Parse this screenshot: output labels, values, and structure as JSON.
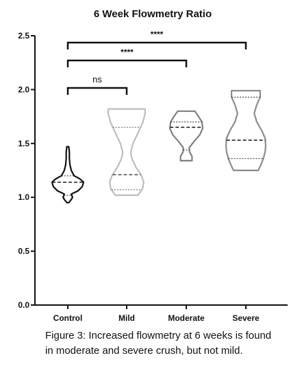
{
  "chart_data": {
    "type": "violin",
    "title": "6 Week Flowmetry Ratio",
    "xlabel": "",
    "ylabel": "",
    "ylim": [
      0,
      2.5
    ],
    "yticks": [
      0.0,
      0.5,
      1.0,
      1.5,
      2.0,
      2.5
    ],
    "ytick_labels": [
      "0.0",
      "0.5",
      "1.0",
      "1.5",
      "2.0",
      "2.5"
    ],
    "categories": [
      "Control",
      "Mild",
      "Moderate",
      "Severe"
    ],
    "series": [
      {
        "category": "Control",
        "color": "#111111",
        "min": 0.95,
        "max": 1.47,
        "median": 1.14,
        "q1": 1.02,
        "q3": 1.2,
        "profile": [
          [
            0.95,
            0.06
          ],
          [
            0.98,
            0.22
          ],
          [
            1.0,
            0.3
          ],
          [
            1.03,
            0.22
          ],
          [
            1.06,
            0.65
          ],
          [
            1.1,
            0.92
          ],
          [
            1.14,
            1.0
          ],
          [
            1.17,
            0.78
          ],
          [
            1.2,
            0.4
          ],
          [
            1.25,
            0.22
          ],
          [
            1.3,
            0.14
          ],
          [
            1.36,
            0.1
          ],
          [
            1.42,
            0.1
          ],
          [
            1.47,
            0.06
          ]
        ]
      },
      {
        "category": "Mild",
        "color": "#bdbdbd",
        "min": 1.02,
        "max": 1.82,
        "median": 1.21,
        "q1": 1.07,
        "q3": 1.65,
        "profile": [
          [
            1.02,
            0.62
          ],
          [
            1.08,
            0.86
          ],
          [
            1.14,
            0.92
          ],
          [
            1.2,
            0.8
          ],
          [
            1.28,
            0.5
          ],
          [
            1.36,
            0.28
          ],
          [
            1.42,
            0.22
          ],
          [
            1.5,
            0.34
          ],
          [
            1.6,
            0.62
          ],
          [
            1.7,
            0.88
          ],
          [
            1.78,
            1.0
          ],
          [
            1.82,
            1.0
          ]
        ]
      },
      {
        "category": "Moderate",
        "color": "#7f7f7f",
        "min": 1.34,
        "max": 1.8,
        "median": 1.65,
        "q1": 1.44,
        "q3": 1.7,
        "profile": [
          [
            1.34,
            0.35
          ],
          [
            1.38,
            0.35
          ],
          [
            1.42,
            0.2
          ],
          [
            1.46,
            0.18
          ],
          [
            1.52,
            0.48
          ],
          [
            1.58,
            0.82
          ],
          [
            1.64,
            1.0
          ],
          [
            1.7,
            0.95
          ],
          [
            1.75,
            0.75
          ],
          [
            1.8,
            0.52
          ]
        ]
      },
      {
        "category": "Severe",
        "color": "#8c8c8c",
        "min": 1.25,
        "max": 1.99,
        "median": 1.53,
        "q1": 1.36,
        "q3": 1.93,
        "profile": [
          [
            1.25,
            0.62
          ],
          [
            1.3,
            0.75
          ],
          [
            1.36,
            0.88
          ],
          [
            1.42,
            0.97
          ],
          [
            1.48,
            1.0
          ],
          [
            1.55,
            0.97
          ],
          [
            1.62,
            0.8
          ],
          [
            1.7,
            0.55
          ],
          [
            1.78,
            0.42
          ],
          [
            1.86,
            0.55
          ],
          [
            1.93,
            0.72
          ],
          [
            1.99,
            0.72
          ]
        ]
      }
    ],
    "significance": [
      {
        "from": "Control",
        "to": "Mild",
        "label": "ns"
      },
      {
        "from": "Control",
        "to": "Moderate",
        "label": "****"
      },
      {
        "from": "Control",
        "to": "Severe",
        "label": "****"
      }
    ]
  },
  "caption": {
    "line1": "Figure 3: Increased flowmetry at 6 weeks is found",
    "line2": "in moderate and severe crush, but not mild."
  }
}
